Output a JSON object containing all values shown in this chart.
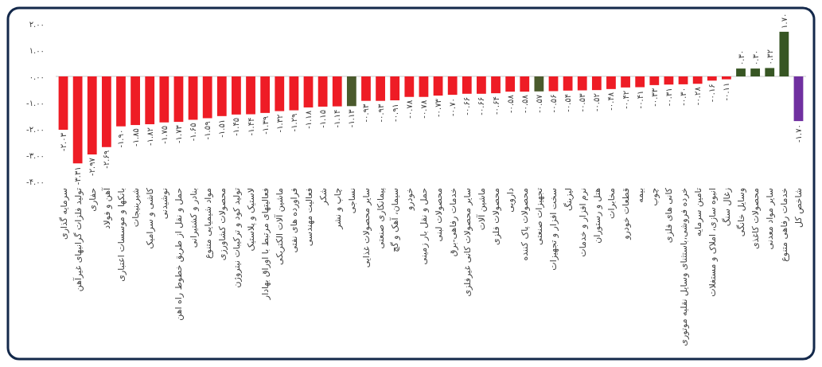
{
  "chart_data": {
    "type": "bar",
    "categories": [
      "سرمایه گذاری",
      "تولید فلزات گرانبهای غیرآهن",
      "حفاری",
      "آهن و فولاد",
      "بانکها و موسسات اعتباری",
      "شیرینیجات",
      "کاشی و سرامیک",
      "نوشیدنی",
      "حمل و نقل از طریق خطوط راه اهن",
      "بنادر و کشتیرانی",
      "مواد شیمیایی متنوع",
      "محصولات کشاورزی",
      "تولید کود و ترکیبات نیتروژن",
      "لاستیک و پلاستیک",
      "فعالیتهای مرتبط با اوراق بهادار",
      "ماشین آلات الکتریکی",
      "فراورده های نفتی",
      "فعالیت مهندسی",
      "شکر",
      "چاپ و نشر",
      "نساجی",
      "سایر محصولات غذایی",
      "پیمانکاری صنعتی",
      "سیمان، آهک و گچ",
      "خودرو",
      "حمل و نقل بار زمینی",
      "محصولات لبنی",
      "خدمات رفاهی-برق",
      "سایر محصولات کانی غیرفلزی",
      "ماشین آلات",
      "محصولات فلزی",
      "دارویی",
      "محصولات پاک کننده",
      "تجهیزات صنعتی",
      "سخت افزار و تجهیزات",
      "لیزینگ",
      "نرم افزار و خدمات",
      "هتل و رستوران",
      "مخابرات",
      "قطعات خودرو",
      "بیمه",
      "چوب",
      "کانی های فلزی",
      "خرده فروشی،باستثنای وسایل نقلیه موتوری",
      "تامین سرمایه",
      "انبوه سازی، املاک و مستغلات",
      "زغال سنگ",
      "وسایل خانگی",
      "محصولات کاغذی",
      "سایر مواد معدنی",
      "خدمات رفاهی متنوع",
      "شاخص کل"
    ],
    "values": [
      -2.03,
      -3.31,
      -2.97,
      -2.69,
      -1.9,
      -1.85,
      -1.82,
      -1.75,
      -1.73,
      -1.65,
      -1.59,
      -1.51,
      -1.45,
      -1.44,
      -1.39,
      -1.32,
      -1.29,
      -1.18,
      -1.15,
      -1.14,
      -1.13,
      -0.93,
      -0.93,
      -0.91,
      -0.78,
      -0.78,
      -0.73,
      -0.7,
      -0.66,
      -0.66,
      -0.64,
      -0.58,
      -0.58,
      -0.57,
      -0.56,
      -0.54,
      -0.53,
      -0.52,
      -0.48,
      -0.42,
      -0.41,
      -0.33,
      -0.31,
      -0.3,
      -0.28,
      -0.16,
      -0.11,
      0.3,
      0.3,
      0.32,
      1.7,
      -1.7
    ],
    "value_labels": [
      "-۲.۰۳",
      "-۳.۳۱",
      "-۲.۹۷",
      "-۲.۶۹",
      "-۱.۹۰",
      "-۱.۸۵",
      "-۱.۸۲",
      "-۱.۷۵",
      "-۱.۷۳",
      "-۱.۶۵",
      "-۱.۵۹",
      "-۱.۵۱",
      "-۱.۴۵",
      "-۱.۴۴",
      "-۱.۳۹",
      "-۱.۳۲",
      "-۱.۲۹",
      "-۱.۱۸",
      "-۱.۱۵",
      "-۱.۱۴",
      "-۱.۱۳",
      "-۰.۹۳",
      "-۰.۹۳",
      "-۰.۹۱",
      "-۰.۷۸",
      "-۰.۷۸",
      "-۰.۷۳",
      "-۰.۷۰",
      "-۰.۶۶",
      "-۰.۶۶",
      "-۰.۶۴",
      "-۰.۵۸",
      "-۰.۵۸",
      "-۰.۵۷",
      "-۰.۵۶",
      "-۰.۵۴",
      "-۰.۵۳",
      "-۰.۵۲",
      "-۰.۴۸",
      "-۰.۴۲",
      "-۰.۴۱",
      "-۰.۳۳",
      "-۰.۳۱",
      "-۰.۳۰",
      "-۰.۲۸",
      "-۰.۱۶",
      "-۰.۱۱",
      "۰.۳۰",
      "۰.۳۰",
      "۰.۳۲",
      "۱.۷۰",
      "-۱.۷۰"
    ],
    "colors": [
      "#ee1c25",
      "#ee1c25",
      "#ee1c25",
      "#ee1c25",
      "#ee1c25",
      "#ee1c25",
      "#ee1c25",
      "#ee1c25",
      "#ee1c25",
      "#ee1c25",
      "#ee1c25",
      "#ee1c25",
      "#ee1c25",
      "#ee1c25",
      "#ee1c25",
      "#ee1c25",
      "#ee1c25",
      "#ee1c25",
      "#ee1c25",
      "#ee1c25",
      "#4a5a2c",
      "#ee1c25",
      "#ee1c25",
      "#ee1c25",
      "#ee1c25",
      "#ee1c25",
      "#ee1c25",
      "#ee1c25",
      "#ee1c25",
      "#ee1c25",
      "#ee1c25",
      "#ee1c25",
      "#ee1c25",
      "#4a5a2c",
      "#ee1c25",
      "#ee1c25",
      "#ee1c25",
      "#ee1c25",
      "#ee1c25",
      "#ee1c25",
      "#ee1c25",
      "#ee1c25",
      "#ee1c25",
      "#ee1c25",
      "#ee1c25",
      "#ee1c25",
      "#ee1c25",
      "#375623",
      "#375623",
      "#375623",
      "#375623",
      "#7030a0"
    ],
    "ylim": [
      -4,
      2
    ],
    "yticks": [
      {
        "value": 2,
        "label": "۲.۰۰"
      },
      {
        "value": 1,
        "label": "۱.۰۰"
      },
      {
        "value": 0,
        "label": "۰.۰۰"
      },
      {
        "value": -1,
        "label": "-۱.۰۰"
      },
      {
        "value": -2,
        "label": "-۲.۰۰"
      },
      {
        "value": -3,
        "label": "-۳.۰۰"
      },
      {
        "value": -4,
        "label": "-۴.۰۰"
      }
    ]
  }
}
